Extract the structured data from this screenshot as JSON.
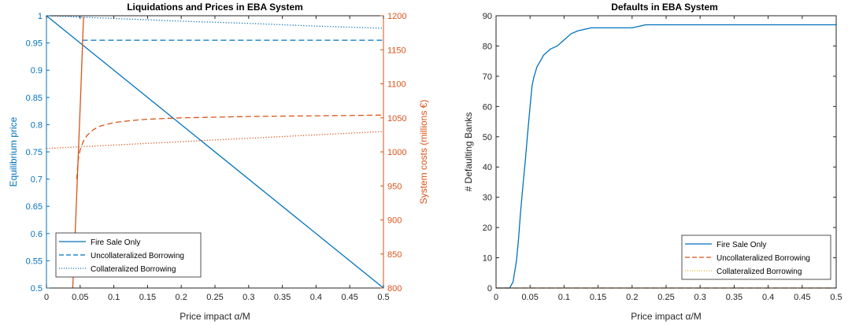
{
  "colors": {
    "blue": "#0072bd",
    "orange": "#d95319",
    "yellow": "#edb120",
    "axis": "#262626"
  },
  "chart_data": [
    {
      "type": "line",
      "title": "Liquidations and Prices in EBA System",
      "xlabel": "Price impact α/M",
      "ylabel": "Equilibrium price",
      "y2label": "System costs (millions €)",
      "xlim": [
        0,
        0.5
      ],
      "ylim": [
        0.5,
        1
      ],
      "y2lim": [
        800,
        1200
      ],
      "xticks": [
        "0",
        "0.05",
        "0.1",
        "0.15",
        "0.2",
        "0.25",
        "0.3",
        "0.35",
        "0.4",
        "0.45",
        "0.5"
      ],
      "yticks": [
        "0.5",
        "0.55",
        "0.6",
        "0.65",
        "0.7",
        "0.75",
        "0.8",
        "0.85",
        "0.9",
        "0.95",
        "1"
      ],
      "y2ticks": [
        "800",
        "850",
        "900",
        "950",
        "1000",
        "1050",
        "1100",
        "1150",
        "1200"
      ],
      "grid": false,
      "legend": {
        "position": "bottom-left",
        "entries": [
          "Fire Sale Only",
          "Uncollateralized Borrowing",
          "Collateralized Borrowing"
        ]
      },
      "series": [
        {
          "name": "Fire Sale Only",
          "axis": "left",
          "color": "blue",
          "dash": "solid",
          "x": [
            0,
            0.5
          ],
          "y": [
            1.0,
            0.5
          ]
        },
        {
          "name": "Uncollateralized Borrowing",
          "axis": "left",
          "color": "blue",
          "dash": "dashed",
          "x": [
            0.053,
            0.1,
            0.2,
            0.3,
            0.4,
            0.5
          ],
          "y": [
            0.955,
            0.955,
            0.955,
            0.955,
            0.955,
            0.955
          ]
        },
        {
          "name": "Collateralized Borrowing",
          "axis": "left",
          "color": "blue",
          "dash": "dotted",
          "x": [
            0,
            0.1,
            0.2,
            0.3,
            0.4,
            0.5
          ],
          "y": [
            1.0,
            0.995,
            0.99,
            0.986,
            0.981,
            0.977
          ]
        },
        {
          "name": "Fire Sale Only",
          "axis": "right",
          "color": "orange",
          "dash": "solid",
          "x": [
            0.039,
            0.043,
            0.047,
            0.051,
            0.055
          ],
          "y": [
            800,
            890,
            990,
            1090,
            1198
          ]
        },
        {
          "name": "Uncollateralized Borrowing",
          "axis": "right",
          "color": "orange",
          "dash": "dashed",
          "x": [
            0.045,
            0.047,
            0.05,
            0.055,
            0.06,
            0.07,
            0.08,
            0.1,
            0.125,
            0.15,
            0.2,
            0.25,
            0.3,
            0.4,
            0.5
          ],
          "y": [
            960,
            988,
            1003,
            1016,
            1024,
            1033,
            1038,
            1043,
            1046,
            1048,
            1050,
            1051,
            1052,
            1053,
            1054
          ]
        },
        {
          "name": "Collateralized Borrowing",
          "axis": "right",
          "color": "orange",
          "dash": "dotted",
          "x": [
            0,
            0.1,
            0.2,
            0.3,
            0.4,
            0.5
          ],
          "y": [
            1005,
            1010,
            1015,
            1020,
            1025,
            1030
          ]
        }
      ]
    },
    {
      "type": "line",
      "title": "Defaults in EBA System",
      "xlabel": "Price impact α/M",
      "ylabel": "# Defaulting Banks",
      "xlim": [
        0,
        0.5
      ],
      "ylim": [
        0,
        90
      ],
      "xticks": [
        "0",
        "0.05",
        "0.1",
        "0.15",
        "0.2",
        "0.25",
        "0.3",
        "0.35",
        "0.4",
        "0.45",
        "0.5"
      ],
      "yticks": [
        "0",
        "10",
        "20",
        "30",
        "40",
        "50",
        "60",
        "70",
        "80",
        "90"
      ],
      "grid": false,
      "legend": {
        "position": "bottom-right",
        "entries": [
          "Fire Sale Only",
          "Uncollateralized Borrowing",
          "Collateralized Borrowing"
        ]
      },
      "series": [
        {
          "name": "Fire Sale Only",
          "color": "blue",
          "dash": "solid",
          "x": [
            0,
            0.02,
            0.025,
            0.03,
            0.033,
            0.036,
            0.04,
            0.043,
            0.046,
            0.05,
            0.053,
            0.056,
            0.06,
            0.065,
            0.07,
            0.075,
            0.08,
            0.09,
            0.1,
            0.11,
            0.12,
            0.14,
            0.16,
            0.2,
            0.22,
            0.3,
            0.4,
            0.5
          ],
          "y": [
            0,
            0,
            2,
            9,
            16,
            25,
            35,
            42,
            50,
            60,
            67,
            70,
            73,
            75,
            77,
            78,
            79,
            80,
            82,
            84,
            85,
            86,
            86,
            86,
            87,
            87,
            87,
            87
          ]
        },
        {
          "name": "Uncollateralized Borrowing",
          "color": "orange",
          "dash": "dashed",
          "x": [
            0,
            0.5
          ],
          "y": [
            0,
            0
          ]
        },
        {
          "name": "Collateralized Borrowing",
          "color": "yellow",
          "dash": "dotted",
          "x": [
            0,
            0.5
          ],
          "y": [
            0,
            0
          ]
        }
      ]
    }
  ]
}
